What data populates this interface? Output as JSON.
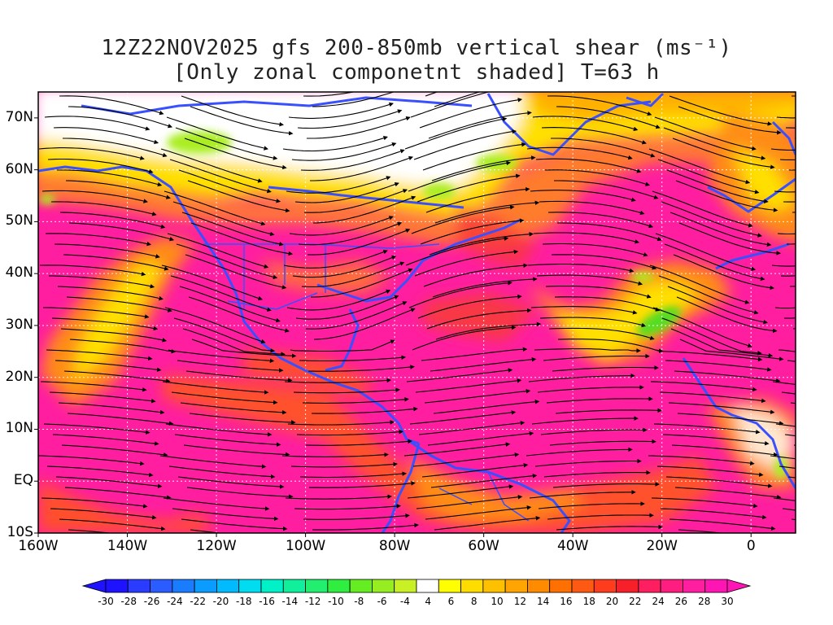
{
  "title": {
    "line1": "12Z22NOV2025 gfs 200-850mb vertical shear (ms⁻¹)",
    "line2": "[Only zonal componetnt shaded] T=63 h"
  },
  "map": {
    "lon_range": [
      -160,
      10
    ],
    "lat_range": [
      -10,
      75
    ],
    "y_ticks": [
      {
        "lat": 70,
        "label": "70N"
      },
      {
        "lat": 60,
        "label": "60N"
      },
      {
        "lat": 50,
        "label": "50N"
      },
      {
        "lat": 40,
        "label": "40N"
      },
      {
        "lat": 30,
        "label": "30N"
      },
      {
        "lat": 20,
        "label": "20N"
      },
      {
        "lat": 10,
        "label": "10N"
      },
      {
        "lat": 0,
        "label": "EQ"
      },
      {
        "lat": -10,
        "label": "10S"
      }
    ],
    "x_ticks": [
      {
        "lon": -160,
        "label": "160W"
      },
      {
        "lon": -140,
        "label": "140W"
      },
      {
        "lon": -120,
        "label": "120W"
      },
      {
        "lon": -100,
        "label": "100W"
      },
      {
        "lon": -80,
        "label": "80W"
      },
      {
        "lon": -60,
        "label": "60W"
      },
      {
        "lon": -40,
        "label": "40W"
      },
      {
        "lon": -20,
        "label": "20W"
      },
      {
        "lon": 0,
        "label": "0"
      }
    ],
    "gridlines": "dotted",
    "shading_colors": {
      "magenta": "#ff1ea0",
      "red": "#f73a3a",
      "orange": "#ff8c14",
      "yellow": "#ffe000",
      "white": "#ffffff",
      "green": "#aaee22",
      "coast": "#3a50ff",
      "streamline": "#000000"
    }
  },
  "colorbar": {
    "labels": [
      "-30",
      "-28",
      "-26",
      "-24",
      "-22",
      "-20",
      "-18",
      "-16",
      "-14",
      "-12",
      "-10",
      "-8",
      "-6",
      "-4",
      "4",
      "6",
      "8",
      "10",
      "12",
      "14",
      "16",
      "18",
      "20",
      "22",
      "24",
      "26",
      "28",
      "30"
    ],
    "colors": [
      "#1e12ff",
      "#2a3cff",
      "#2a5cff",
      "#1a7cff",
      "#0a9cff",
      "#00bcff",
      "#00dcf0",
      "#00f0c8",
      "#10f09c",
      "#22ee70",
      "#30ee40",
      "#64ee22",
      "#96ee22",
      "#c8f024",
      "#ffffff",
      "#ffff00",
      "#ffdc00",
      "#ffc000",
      "#ffa400",
      "#ff8c00",
      "#ff7000",
      "#ff5a14",
      "#ff3c1e",
      "#f7202a",
      "#ff1e60",
      "#ff1e80",
      "#ff1ea0",
      "#ff14b4"
    ]
  }
}
